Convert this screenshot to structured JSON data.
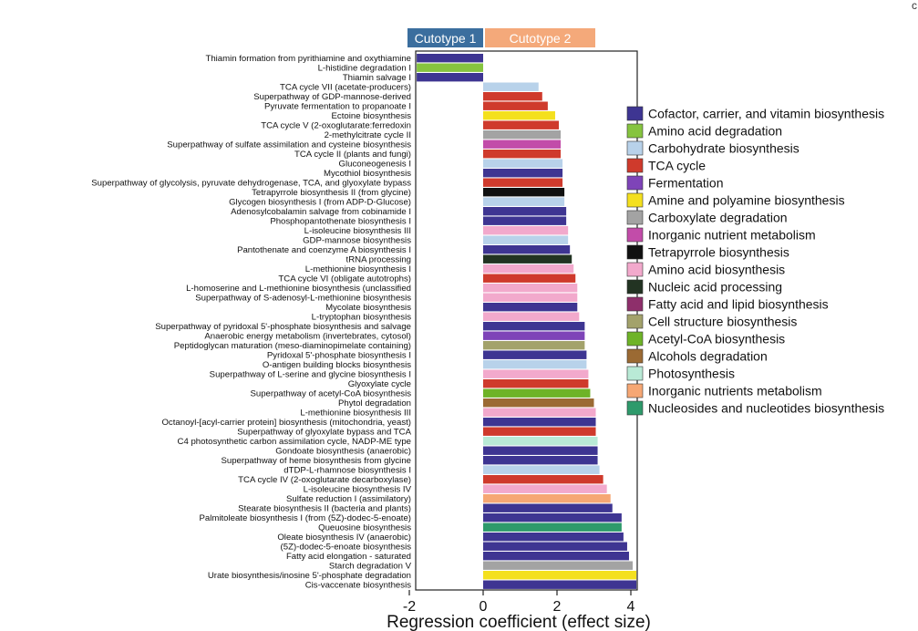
{
  "corner_label": "c",
  "chart_data": {
    "type": "bar",
    "orientation": "horizontal",
    "xlabel": "Regression coefficient (effect size)",
    "xlim": [
      -2,
      4.2
    ],
    "xticks": [
      -2,
      0,
      2,
      4
    ],
    "grid": false,
    "legend_position": "right",
    "groups": [
      {
        "name": "Cutotype 1",
        "color": "#3B6E9E"
      },
      {
        "name": "Cutotype 2",
        "color": "#F4A97A"
      }
    ],
    "legend": [
      {
        "name": "Cofactor, carrier, and vitamin biosynthesis",
        "color": "#3E3592"
      },
      {
        "name": "Amino acid degradation",
        "color": "#86C43F"
      },
      {
        "name": "Carbohydrate biosynthesis",
        "color": "#B8D2EA"
      },
      {
        "name": "TCA cycle",
        "color": "#CF3A2C"
      },
      {
        "name": "Fermentation",
        "color": "#7E44B8"
      },
      {
        "name": "Amine and polyamine biosynthesis",
        "color": "#F4E01E"
      },
      {
        "name": "Carboxylate degradation",
        "color": "#A3A3A3"
      },
      {
        "name": "Inorganic nutrient metabolism",
        "color": "#C24CA9"
      },
      {
        "name": "Tetrapyrrole biosynthesis",
        "color": "#111111"
      },
      {
        "name": "Amino acid biosynthesis",
        "color": "#F2A9CC"
      },
      {
        "name": "Nucleic acid processing",
        "color": "#223322"
      },
      {
        "name": "Fatty acid and lipid biosynthesis",
        "color": "#8E2F6B"
      },
      {
        "name": "Cell structure biosynthesis",
        "color": "#A3A26B"
      },
      {
        "name": "Acetyl-CoA biosynthesis",
        "color": "#6EB327"
      },
      {
        "name": "Alcohols degradation",
        "color": "#9B6A33"
      },
      {
        "name": "Photosynthesis",
        "color": "#B9EAD6"
      },
      {
        "name": "Inorganic nutrients metabolism",
        "color": "#F6A774"
      },
      {
        "name": "Nucleosides and nucleotides biosynthesis",
        "color": "#2E9A6B"
      }
    ],
    "categories": [
      "Thiamin formation from pyrithiamine and oxythiamine",
      "L-histidine degradation I",
      "Thiamin salvage I",
      "TCA cycle VII (acetate-producers)",
      "Superpathway of GDP-mannose-derived",
      "Pyruvate fermentation to propanoate I",
      "Ectoine biosynthesis",
      "TCA cycle V (2-oxoglutarate:ferredoxin",
      "2-methylcitrate cycle II",
      "Superpathway of sulfate assimilation and cysteine biosynthesis",
      "TCA cycle II (plants and fungi)",
      "Gluconeogenesis I",
      "Mycothiol biosynthesis",
      "Superpathway of glycolysis, pyruvate dehydrogenase, TCA, and glyoxylate bypass",
      "Tetrapyrrole biosynthesis II (from glycine)",
      "Glycogen biosynthesis I (from ADP-D-Glucose)",
      "Adenosylcobalamin salvage from cobinamide I",
      "Phosphopantothenate biosynthesis I",
      "L-isoleucine biosynthesis III",
      "GDP-mannose biosynthesis",
      "Pantothenate and coenzyme A biosynthesis I",
      "tRNA processing",
      "L-methionine biosynthesis I",
      "TCA cycle VI (obligate autotrophs)",
      "L-homoserine and L-methionine biosynthesis (unclassified",
      "Superpathway of S-adenosyl-L-methionine biosynthesis",
      "Mycolate biosynthesis",
      "L-tryptophan biosynthesis",
      "Superpathway of pyridoxal 5'-phosphate biosynthesis and salvage",
      "Anaerobic energy metabolism (invertebrates, cytosol)",
      "Peptidoglycan maturation (meso-diaminopimelate containing)",
      "Pyridoxal 5'-phosphate biosynthesis I",
      "O-antigen building blocks biosynthesis",
      "Superpathway of L-serine and glycine biosynthesis I",
      "Glyoxylate cycle",
      "Superpathway of acetyl-CoA biosynthesis",
      "Phytol degradation",
      "L-methionine biosynthesis III",
      "Octanoyl-[acyl-carrier protein] biosynthesis (mitochondria, yeast)",
      "Superpathway of glyoxylate bypass and TCA",
      "C4 photosynthetic carbon assimilation cycle, NADP-ME type",
      "Gondoate biosynthesis (anaerobic)",
      "Superpathway of heme biosynthesis from glycine",
      "dTDP-L-rhamnose biosynthesis I",
      "TCA cycle IV (2-oxoglutarate decarboxylase)",
      "L-isoleucine biosynthesis IV",
      "Sulfate reduction I (assimilatory)",
      "Stearate biosynthesis II (bacteria and plants)",
      "Palmitoleate biosynthesis I (from (5Z)-dodec-5-enoate)",
      "Queuosine biosynthesis",
      "Oleate biosynthesis IV (anaerobic)",
      "(5Z)-dodec-5-enoate biosynthesis",
      "Fatty acid elongation - saturated",
      "Starch degradation V",
      "Urate biosynthesis/inosine 5'-phosphate degradation",
      "Cis-vaccenate biosynthesis"
    ],
    "values": [
      -1.8,
      -1.8,
      -1.8,
      1.5,
      1.6,
      1.75,
      1.95,
      2.05,
      2.1,
      2.1,
      2.1,
      2.15,
      2.15,
      2.15,
      2.2,
      2.2,
      2.25,
      2.25,
      2.3,
      2.3,
      2.35,
      2.4,
      2.45,
      2.5,
      2.55,
      2.55,
      2.55,
      2.6,
      2.75,
      2.75,
      2.75,
      2.8,
      2.8,
      2.85,
      2.85,
      2.9,
      3.0,
      3.05,
      3.05,
      3.05,
      3.1,
      3.1,
      3.1,
      3.15,
      3.25,
      3.35,
      3.45,
      3.5,
      3.75,
      3.75,
      3.8,
      3.9,
      3.95,
      4.05,
      4.15,
      4.15
    ],
    "bar_colors": [
      "#3E3592",
      "#86C43F",
      "#3E3592",
      "#B8D2EA",
      "#CF3A2C",
      "#CF3A2C",
      "#F4E01E",
      "#CF3A2C",
      "#A3A3A3",
      "#C24CA9",
      "#CF3A2C",
      "#B8D2EA",
      "#3E3592",
      "#CF3A2C",
      "#111111",
      "#B8D2EA",
      "#3E3592",
      "#3E3592",
      "#F2A9CC",
      "#B8D2EA",
      "#3E3592",
      "#223322",
      "#F2A9CC",
      "#CF3A2C",
      "#F2A9CC",
      "#F2A9CC",
      "#3E3592",
      "#F2A9CC",
      "#3E3592",
      "#7E44B8",
      "#A3A26B",
      "#3E3592",
      "#B8D2EA",
      "#F2A9CC",
      "#CF3A2C",
      "#6EB327",
      "#9B6A33",
      "#F2A9CC",
      "#3E3592",
      "#CF3A2C",
      "#B9EAD6",
      "#3E3592",
      "#3E3592",
      "#B8D2EA",
      "#CF3A2C",
      "#F2A9CC",
      "#F6A774",
      "#3E3592",
      "#3E3592",
      "#2E9A6B",
      "#3E3592",
      "#3E3592",
      "#3E3592",
      "#A3A3A3",
      "#F4E01E",
      "#3E3592"
    ]
  }
}
